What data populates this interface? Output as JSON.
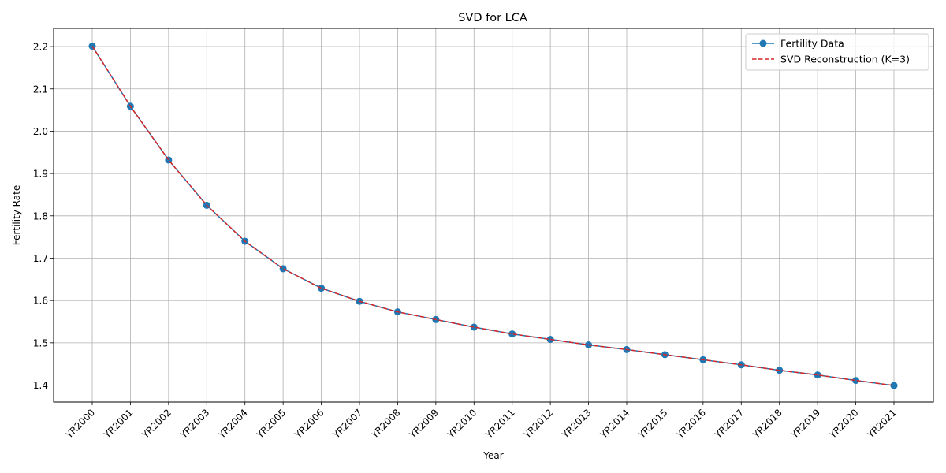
{
  "chart_data": {
    "type": "line",
    "title": "SVD for LCA",
    "xlabel": "Year",
    "ylabel": "Fertility Rate",
    "categories": [
      "YR2000",
      "YR2001",
      "YR2002",
      "YR2003",
      "YR2004",
      "YR2005",
      "YR2006",
      "YR2007",
      "YR2008",
      "YR2009",
      "YR2010",
      "YR2011",
      "YR2012",
      "YR2013",
      "YR2014",
      "YR2015",
      "YR2016",
      "YR2017",
      "YR2018",
      "YR2019",
      "YR2020",
      "YR2021"
    ],
    "yticks": [
      "1.4",
      "1.5",
      "1.6",
      "1.7",
      "1.8",
      "1.9",
      "2.0",
      "2.1",
      "2.2"
    ],
    "ylim": [
      1.36,
      2.243
    ],
    "grid": true,
    "legend_position": "top-right",
    "series": [
      {
        "name": "Fertility Data",
        "color": "#1f77b4",
        "style": "solid-with-circle-markers",
        "values": [
          2.201,
          2.059,
          1.932,
          1.825,
          1.74,
          1.675,
          1.629,
          1.598,
          1.573,
          1.555,
          1.537,
          1.521,
          1.508,
          1.495,
          1.484,
          1.472,
          1.46,
          1.448,
          1.435,
          1.424,
          1.411,
          1.399
        ]
      },
      {
        "name": "SVD Reconstruction (K=3)",
        "color": "#d62728",
        "style": "dashed",
        "values": [
          2.201,
          2.059,
          1.932,
          1.825,
          1.74,
          1.675,
          1.629,
          1.598,
          1.573,
          1.555,
          1.537,
          1.521,
          1.508,
          1.495,
          1.484,
          1.472,
          1.46,
          1.448,
          1.435,
          1.424,
          1.411,
          1.399
        ]
      }
    ]
  }
}
